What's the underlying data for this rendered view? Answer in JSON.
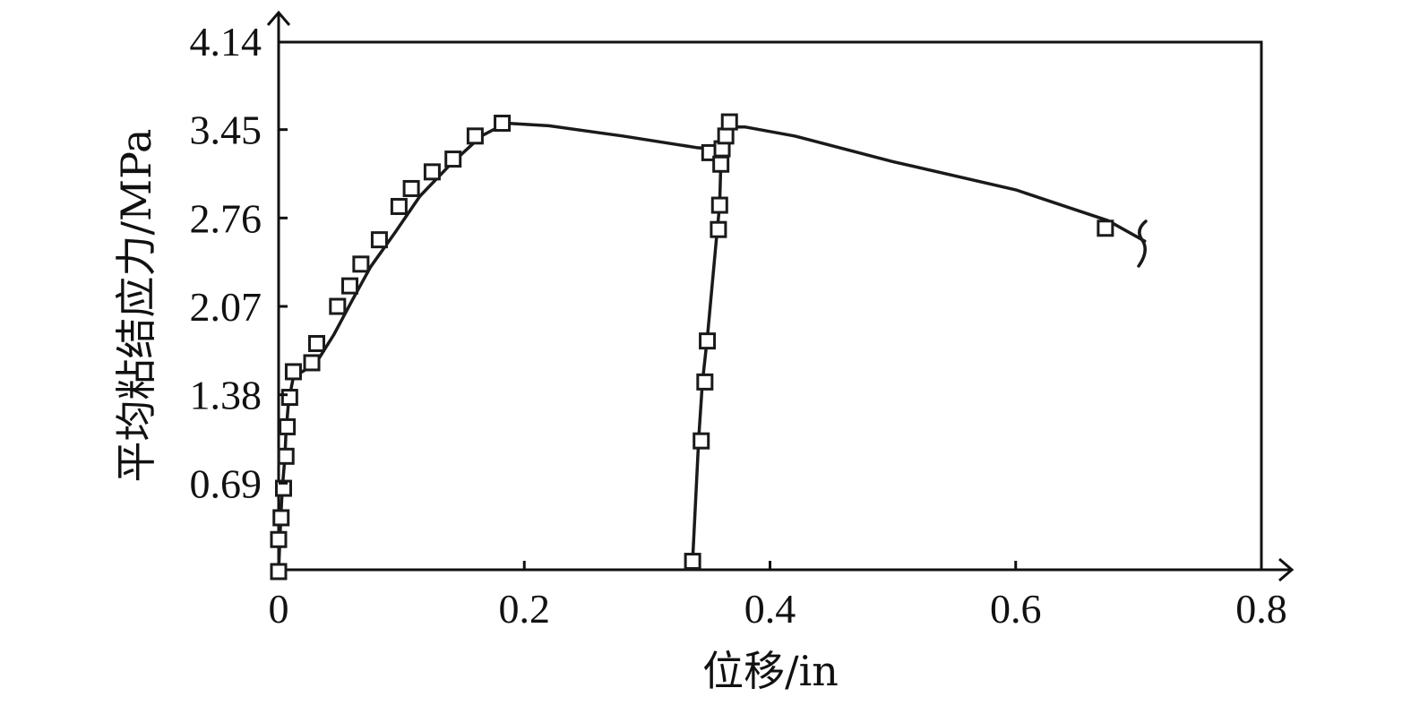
{
  "chart_data": {
    "type": "line",
    "title": "",
    "xlabel": "位移/in",
    "ylabel": "平均粘结应力/MPa",
    "xlim": [
      0,
      0.8
    ],
    "ylim": [
      0,
      4.14
    ],
    "x_ticks": [
      "0",
      "0.2",
      "0.4",
      "0.6",
      "0.8"
    ],
    "y_ticks": [
      "0.69",
      "1.38",
      "2.07",
      "2.76",
      "3.45",
      "4.14"
    ],
    "x_tick_values": [
      0,
      0.2,
      0.4,
      0.6,
      0.8
    ],
    "y_tick_values": [
      0.69,
      1.38,
      2.07,
      2.76,
      3.45,
      4.14
    ],
    "grid": false,
    "legend": "none",
    "series": [
      {
        "curve": [
          [
            0.0,
            0.0
          ],
          [
            0.001,
            0.25
          ],
          [
            0.002,
            0.45
          ],
          [
            0.003,
            0.65
          ],
          [
            0.005,
            0.88
          ],
          [
            0.006,
            1.08
          ],
          [
            0.008,
            1.32
          ],
          [
            0.012,
            1.52
          ],
          [
            0.03,
            1.62
          ],
          [
            0.045,
            1.85
          ],
          [
            0.06,
            2.12
          ],
          [
            0.075,
            2.38
          ],
          [
            0.095,
            2.65
          ],
          [
            0.115,
            2.93
          ],
          [
            0.14,
            3.18
          ],
          [
            0.165,
            3.4
          ],
          [
            0.185,
            3.5
          ],
          [
            0.22,
            3.48
          ],
          [
            0.28,
            3.4
          ],
          [
            0.34,
            3.31
          ],
          [
            0.352,
            3.3
          ]
        ],
        "markers": [
          [
            0.0,
            0.0
          ],
          [
            0.0,
            0.25
          ],
          [
            0.002,
            0.42
          ],
          [
            0.004,
            0.65
          ],
          [
            0.006,
            0.9
          ],
          [
            0.007,
            1.13
          ],
          [
            0.009,
            1.36
          ],
          [
            0.012,
            1.56
          ],
          [
            0.027,
            1.63
          ],
          [
            0.031,
            1.78
          ],
          [
            0.048,
            2.07
          ],
          [
            0.058,
            2.23
          ],
          [
            0.067,
            2.4
          ],
          [
            0.082,
            2.59
          ],
          [
            0.098,
            2.85
          ],
          [
            0.108,
            2.99
          ],
          [
            0.125,
            3.12
          ],
          [
            0.142,
            3.22
          ],
          [
            0.16,
            3.4
          ],
          [
            0.182,
            3.5
          ]
        ]
      },
      {
        "curve": [
          [
            0.337,
            0.08
          ],
          [
            0.342,
            1.05
          ],
          [
            0.345,
            1.48
          ],
          [
            0.349,
            1.83
          ],
          [
            0.357,
            2.66
          ],
          [
            0.359,
            2.86
          ],
          [
            0.36,
            3.18
          ],
          [
            0.362,
            3.31
          ],
          [
            0.365,
            3.41
          ],
          [
            0.368,
            3.47
          ],
          [
            0.38,
            3.47
          ],
          [
            0.42,
            3.4
          ],
          [
            0.5,
            3.2
          ],
          [
            0.6,
            2.98
          ],
          [
            0.675,
            2.74
          ],
          [
            0.705,
            2.58
          ]
        ],
        "markers": [
          [
            0.337,
            0.08
          ],
          [
            0.344,
            1.02
          ],
          [
            0.347,
            1.48
          ],
          [
            0.349,
            1.8
          ],
          [
            0.358,
            2.67
          ],
          [
            0.359,
            2.86
          ],
          [
            0.351,
            3.27
          ],
          [
            0.36,
            3.18
          ],
          [
            0.361,
            3.3
          ],
          [
            0.364,
            3.4
          ],
          [
            0.367,
            3.51
          ],
          [
            0.673,
            2.68
          ]
        ]
      }
    ]
  }
}
